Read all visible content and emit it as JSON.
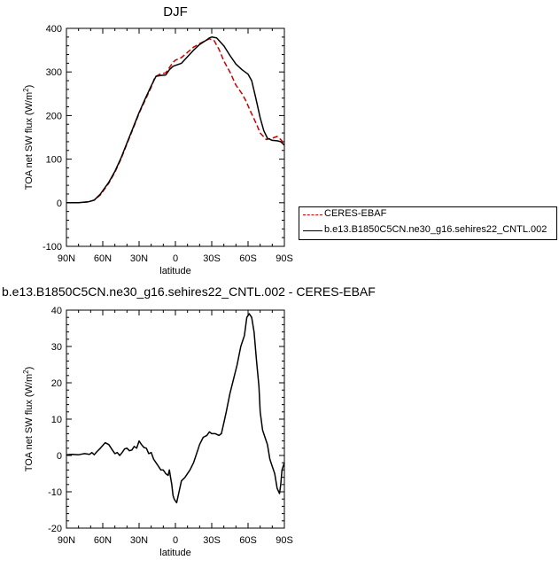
{
  "chart_data": [
    {
      "type": "line",
      "title": "DJF",
      "xlabel": "latitude",
      "ylabel": "TOA net SW flux (W/m",
      "ylabel_sup": "2",
      "ylabel_end": ")",
      "x_ticks": [
        90,
        60,
        30,
        0,
        -30,
        -60,
        -90
      ],
      "x_tick_labels": [
        "90N",
        "60N",
        "30N",
        "0",
        "30S",
        "60S",
        "90S"
      ],
      "xlim": [
        90,
        -90
      ],
      "ylim": [
        -100,
        400
      ],
      "y_ticks": [
        -100,
        0,
        100,
        200,
        300,
        400
      ],
      "y_tick_labels": [
        "-100",
        "0",
        "100",
        "200",
        "300",
        "400"
      ],
      "series": [
        {
          "name": "CERES-EBAF",
          "color": "#cc0000",
          "dash": true,
          "points": [
            [
              90,
              0
            ],
            [
              80,
              0
            ],
            [
              72,
              2
            ],
            [
              67,
              6
            ],
            [
              62,
              18
            ],
            [
              55,
              45
            ],
            [
              50,
              70
            ],
            [
              45,
              100
            ],
            [
              40,
              135
            ],
            [
              35,
              170
            ],
            [
              30,
              205
            ],
            [
              25,
              235
            ],
            [
              20,
              265
            ],
            [
              17,
              288
            ],
            [
              13,
              295
            ],
            [
              8,
              298
            ],
            [
              5,
              310
            ],
            [
              2,
              322
            ],
            [
              0,
              327
            ],
            [
              -5,
              333
            ],
            [
              -10,
              345
            ],
            [
              -15,
              357
            ],
            [
              -20,
              365
            ],
            [
              -25,
              372
            ],
            [
              -28,
              376
            ],
            [
              -32,
              372
            ],
            [
              -36,
              352
            ],
            [
              -40,
              325
            ],
            [
              -45,
              300
            ],
            [
              -50,
              270
            ],
            [
              -55,
              250
            ],
            [
              -58,
              235
            ],
            [
              -62,
              210
            ],
            [
              -67,
              180
            ],
            [
              -70,
              160
            ],
            [
              -75,
              145
            ],
            [
              -80,
              148
            ],
            [
              -84,
              152
            ],
            [
              -87,
              145
            ],
            [
              -90,
              135
            ]
          ]
        },
        {
          "name": "b.e13.B1850C5CN.ne30_g16.sehires22_CNTL.002",
          "color": "#000000",
          "dash": false,
          "points": [
            [
              90,
              0
            ],
            [
              80,
              0
            ],
            [
              72,
              2
            ],
            [
              67,
              6
            ],
            [
              62,
              20
            ],
            [
              55,
              47
            ],
            [
              50,
              72
            ],
            [
              45,
              102
            ],
            [
              40,
              137
            ],
            [
              35,
              172
            ],
            [
              30,
              207
            ],
            [
              25,
              238
            ],
            [
              20,
              268
            ],
            [
              16,
              290
            ],
            [
              12,
              292
            ],
            [
              8,
              293
            ],
            [
              5,
              305
            ],
            [
              2,
              313
            ],
            [
              0,
              315
            ],
            [
              -5,
              320
            ],
            [
              -10,
              335
            ],
            [
              -15,
              350
            ],
            [
              -20,
              363
            ],
            [
              -25,
              372
            ],
            [
              -28,
              378
            ],
            [
              -30,
              380
            ],
            [
              -34,
              378
            ],
            [
              -40,
              360
            ],
            [
              -45,
              338
            ],
            [
              -50,
              318
            ],
            [
              -55,
              305
            ],
            [
              -60,
              295
            ],
            [
              -63,
              280
            ],
            [
              -66,
              245
            ],
            [
              -70,
              195
            ],
            [
              -73,
              165
            ],
            [
              -76,
              148
            ],
            [
              -80,
              143
            ],
            [
              -84,
              142
            ],
            [
              -87,
              140
            ],
            [
              -90,
              132
            ]
          ]
        }
      ]
    },
    {
      "type": "line",
      "title": "b.e13.B1850C5CN.ne30_g16.sehires22_CNTL.002 - CERES-EBAF",
      "xlabel": "latitude",
      "ylabel": "TOA net SW flux (W/m",
      "ylabel_sup": "2",
      "ylabel_end": ")",
      "x_ticks": [
        90,
        60,
        30,
        0,
        -30,
        -60,
        -90
      ],
      "x_tick_labels": [
        "90N",
        "60N",
        "30N",
        "0",
        "30S",
        "60S",
        "90S"
      ],
      "xlim": [
        90,
        -90
      ],
      "ylim": [
        -20,
        40
      ],
      "y_ticks": [
        -20,
        -10,
        0,
        10,
        20,
        30,
        40
      ],
      "y_tick_labels": [
        "-20",
        "-10",
        "0",
        "10",
        "20",
        "30",
        "40"
      ],
      "series": [
        {
          "color": "#000000",
          "dash": false,
          "points": [
            [
              90,
              0.2
            ],
            [
              85,
              0.3
            ],
            [
              80,
              0.2
            ],
            [
              75,
              0.5
            ],
            [
              71,
              0.3
            ],
            [
              69,
              0.8
            ],
            [
              67,
              0.2
            ],
            [
              65,
              1
            ],
            [
              62,
              2
            ],
            [
              58,
              3.5
            ],
            [
              55,
              3
            ],
            [
              52,
              1.5
            ],
            [
              50,
              0.5
            ],
            [
              48,
              0.8
            ],
            [
              46,
              0
            ],
            [
              44,
              0.8
            ],
            [
              42,
              1.8
            ],
            [
              40,
              2
            ],
            [
              38,
              1.3
            ],
            [
              36,
              1.5
            ],
            [
              34,
              2.5
            ],
            [
              32,
              2
            ],
            [
              30,
              4
            ],
            [
              28,
              3
            ],
            [
              26,
              2.2
            ],
            [
              24,
              2
            ],
            [
              22,
              0.5
            ],
            [
              20,
              0.8
            ],
            [
              18,
              -1
            ],
            [
              16,
              -2
            ],
            [
              14,
              -3
            ],
            [
              12,
              -4
            ],
            [
              10,
              -4
            ],
            [
              8,
              -5
            ],
            [
              6,
              -5.5
            ],
            [
              5,
              -4
            ],
            [
              4,
              -6
            ],
            [
              3,
              -8
            ],
            [
              2,
              -11
            ],
            [
              1,
              -12
            ],
            [
              0,
              -12.5
            ],
            [
              -1,
              -13
            ],
            [
              -3,
              -10
            ],
            [
              -5,
              -7
            ],
            [
              -8,
              -6
            ],
            [
              -12,
              -4
            ],
            [
              -15,
              -2
            ],
            [
              -18,
              1
            ],
            [
              -20,
              3
            ],
            [
              -23,
              5
            ],
            [
              -26,
              5.5
            ],
            [
              -28,
              6.5
            ],
            [
              -30,
              6
            ],
            [
              -33,
              6
            ],
            [
              -36,
              5.5
            ],
            [
              -38,
              6
            ],
            [
              -40,
              9
            ],
            [
              -42,
              12
            ],
            [
              -45,
              17
            ],
            [
              -48,
              21
            ],
            [
              -51,
              25
            ],
            [
              -54,
              30
            ],
            [
              -57,
              33
            ],
            [
              -59,
              38
            ],
            [
              -61,
              39
            ],
            [
              -63,
              38
            ],
            [
              -65,
              34
            ],
            [
              -67,
              26
            ],
            [
              -69,
              19
            ],
            [
              -70,
              12
            ],
            [
              -72,
              7
            ],
            [
              -74,
              5
            ],
            [
              -76,
              3
            ],
            [
              -78,
              -1
            ],
            [
              -80,
              -3
            ],
            [
              -82,
              -5
            ],
            [
              -84,
              -9
            ],
            [
              -86,
              -10.5
            ],
            [
              -87,
              -8
            ],
            [
              -88,
              -4
            ],
            [
              -90,
              -2
            ]
          ]
        }
      ]
    }
  ],
  "legend": {
    "items": [
      {
        "label": "CERES-EBAF",
        "color": "#cc0000",
        "dash": true
      },
      {
        "label": "b.e13.B1850C5CN.ne30_g16.sehires22_CNTL.002",
        "color": "#000000",
        "dash": false
      }
    ]
  }
}
